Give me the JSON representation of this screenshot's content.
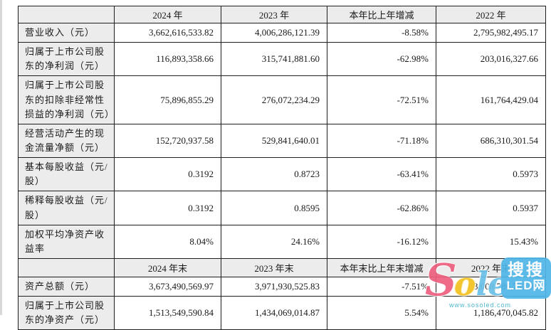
{
  "table": {
    "styles": {
      "header_bg": "#ececec",
      "label_bg": "#ececec",
      "cell_bg": "#ffffff",
      "border_color": "#1f1f1f"
    },
    "sections": [
      {
        "headers": [
          "",
          "2024 年",
          "2023 年",
          "本年比上年增减",
          "2022 年"
        ],
        "rows": [
          {
            "label": "营业收入（元）",
            "values": [
              "3,662,616,533.82",
              "4,006,286,121.39",
              "-8.58%",
              "2,795,982,495.17"
            ]
          },
          {
            "label": "归属于上市公司股东的净利润（元）",
            "values": [
              "116,893,358.66",
              "315,741,881.60",
              "-62.98%",
              "203,016,327.66"
            ]
          },
          {
            "label": "归属于上市公司股东的扣除非经常性损益的净利润（元）",
            "values": [
              "75,896,855.29",
              "276,072,234.29",
              "-72.51%",
              "161,764,429.04"
            ]
          },
          {
            "label": "经营活动产生的现金流量净额（元）",
            "values": [
              "152,720,937.58",
              "529,841,640.01",
              "-71.18%",
              "686,310,301.54"
            ]
          },
          {
            "label": "基本每股收益（元/股）",
            "values": [
              "0.3192",
              "0.8723",
              "-63.41%",
              "0.5973"
            ]
          },
          {
            "label": "稀释每股收益（元/股）",
            "values": [
              "0.3192",
              "0.8595",
              "-62.86%",
              "0.5937"
            ]
          },
          {
            "label": "加权平均净资产收益率",
            "values": [
              "8.04%",
              "24.16%",
              "-16.12%",
              "15.43%"
            ]
          }
        ]
      },
      {
        "headers": [
          "",
          "2024 年末",
          "2023 年末",
          "本年末比上年末增减",
          "2022 年末"
        ],
        "rows": [
          {
            "label": "资产总额（元）",
            "values": [
              "3,673,490,569.97",
              "3,971,930,525.83",
              "-7.51%",
              "3,008,786,732.95"
            ]
          },
          {
            "label": "归属于上市公司股东的净资产（元）",
            "values": [
              "1,513,549,590.84",
              "1,434,069,014.87",
              "5.54%",
              "1,186,470,045.82"
            ]
          }
        ]
      }
    ]
  },
  "watermark": {
    "script": {
      "s": "S",
      "o": "o",
      "led": "led"
    },
    "badge_line1": "搜搜",
    "badge_line2": "LED网",
    "url": "www.sosoled.com",
    "colors": {
      "script_s": "#ee5f7e",
      "script_o": "#f2c11e",
      "script_led": "#6ac0e8",
      "badge_bg": "#4fb6e8",
      "badge_text": "#ffffff",
      "url_text": "#3fb0c9"
    }
  }
}
